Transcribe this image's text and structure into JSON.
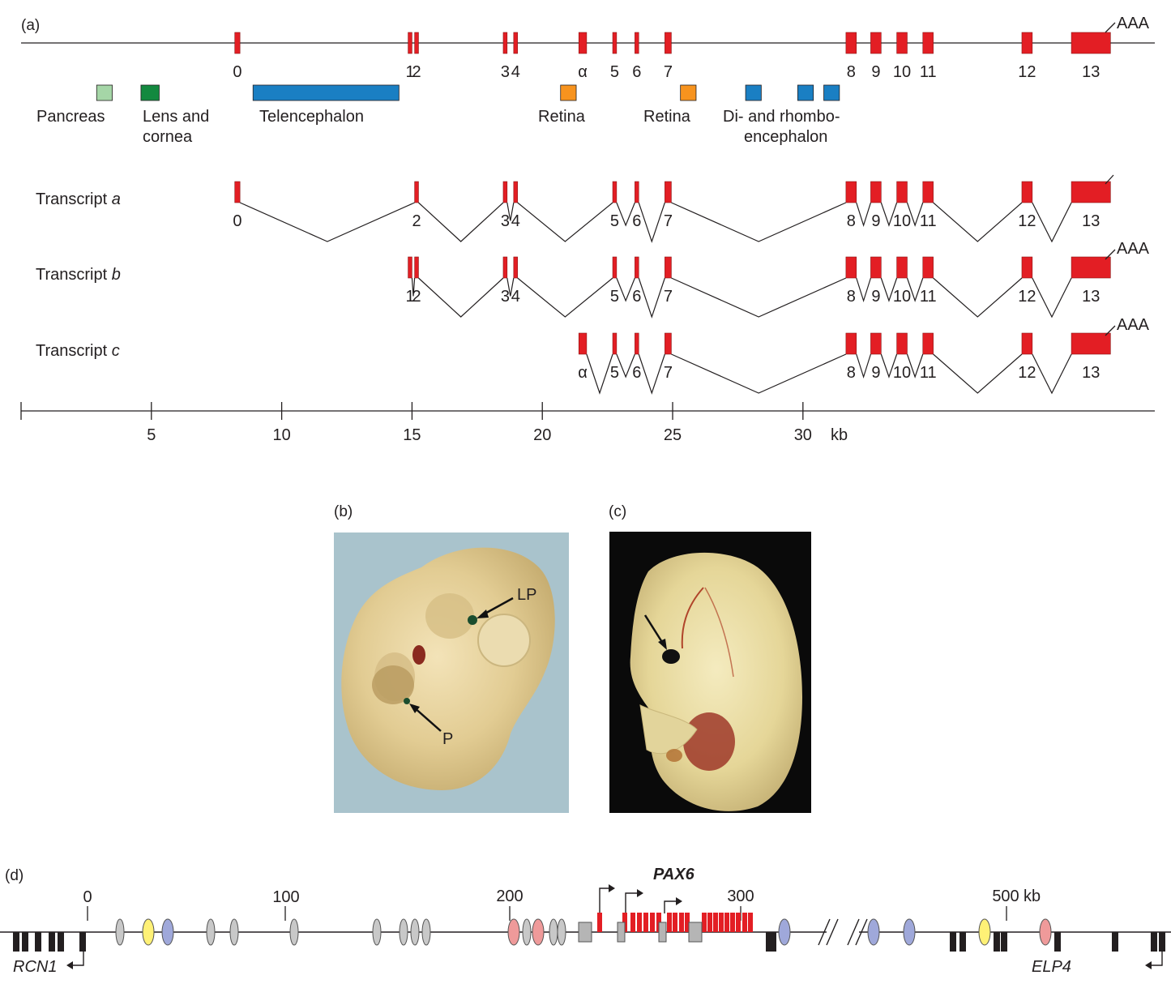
{
  "panel_a": {
    "label": "(a)",
    "poly_a_label": "AAA",
    "exons": [
      {
        "label": "0",
        "start": 8.2,
        "end": 8.4
      },
      {
        "label": "1",
        "start": 14.85,
        "end": 15.0
      },
      {
        "label": "2",
        "start": 15.1,
        "end": 15.25
      },
      {
        "label": "3",
        "start": 18.5,
        "end": 18.65
      },
      {
        "label": "4",
        "start": 18.9,
        "end": 19.05
      },
      {
        "label": "α",
        "start": 21.4,
        "end": 21.7
      },
      {
        "label": "5",
        "start": 22.7,
        "end": 22.85
      },
      {
        "label": "6",
        "start": 23.55,
        "end": 23.7
      },
      {
        "label": "7",
        "start": 24.7,
        "end": 24.95
      },
      {
        "label": "8",
        "start": 31.65,
        "end": 32.05
      },
      {
        "label": "9",
        "start": 32.6,
        "end": 33.0
      },
      {
        "label": "10",
        "start": 33.6,
        "end": 34.0
      },
      {
        "label": "11",
        "start": 34.6,
        "end": 35.0
      },
      {
        "label": "12",
        "start": 38.4,
        "end": 38.8
      },
      {
        "label": "13",
        "start": 40.3,
        "end": 41.8
      }
    ],
    "enhancers": [
      {
        "label": "Pancreas",
        "color": "#a5d6a7",
        "start": 2.9,
        "end": 3.5
      },
      {
        "label": "Lens and cornea",
        "label_lines": [
          "Lens and",
          "cornea"
        ],
        "color": "#13893f",
        "start": 4.6,
        "end": 5.3
      },
      {
        "label": "Telencephalon",
        "color": "#1a7fc3",
        "start": 8.9,
        "end": 14.5
      },
      {
        "label": "Retina",
        "color": "#f7931e",
        "start": 20.7,
        "end": 21.3
      },
      {
        "label": "Retina",
        "color": "#f7931e",
        "start": 25.3,
        "end": 25.9
      },
      {
        "label": "Di- and rhombo-encephalon",
        "label_lines": [
          "Di- and rhombo-",
          "encephalon"
        ],
        "color": "#1a7fc3",
        "start": 27.8,
        "end": 28.4
      },
      {
        "label": "",
        "color": "#1a7fc3",
        "start": 29.8,
        "end": 30.4
      },
      {
        "label": "",
        "color": "#1a7fc3",
        "start": 30.8,
        "end": 31.4
      }
    ],
    "transcripts": [
      {
        "name": "Transcript",
        "letter": "a",
        "exons": [
          "0",
          "2",
          "3",
          "4",
          "5",
          "6",
          "7",
          "8",
          "9",
          "10",
          "11",
          "12",
          "13"
        ],
        "tail": ""
      },
      {
        "name": "Transcript",
        "letter": "b",
        "exons": [
          "1",
          "2",
          "3",
          "4",
          "5",
          "6",
          "7",
          "8",
          "9",
          "10",
          "11",
          "12",
          "13"
        ],
        "tail": "AAA"
      },
      {
        "name": "Transcript",
        "letter": "c",
        "exons": [
          "α",
          "5",
          "6",
          "7",
          "8",
          "9",
          "10",
          "11",
          "12",
          "13"
        ],
        "tail": "AAA"
      }
    ],
    "scale": {
      "ticks": [
        5,
        10,
        15,
        20,
        25,
        30
      ],
      "unit": "kb",
      "max": 43.5
    }
  },
  "panel_b": {
    "label": "(b)",
    "arrow_labels": [
      "LP",
      "P"
    ]
  },
  "panel_c": {
    "label": "(c)"
  },
  "panel_d": {
    "label": "(d)",
    "gene_label": "PAX6",
    "left_gene": "RCN1",
    "right_gene": "ELP4",
    "ticks": [
      {
        "label": "0"
      },
      {
        "label": "100"
      },
      {
        "label": "200"
      },
      {
        "label": "300"
      },
      {
        "label": "500",
        "unit": "kb"
      }
    ],
    "element_colors": {
      "grey": "#c8c8c8",
      "yellow": "#fff176",
      "blue": "#9fa8da",
      "red": "#ef9a9a",
      "exon": "#e31e24",
      "gene": "#231f20"
    }
  }
}
